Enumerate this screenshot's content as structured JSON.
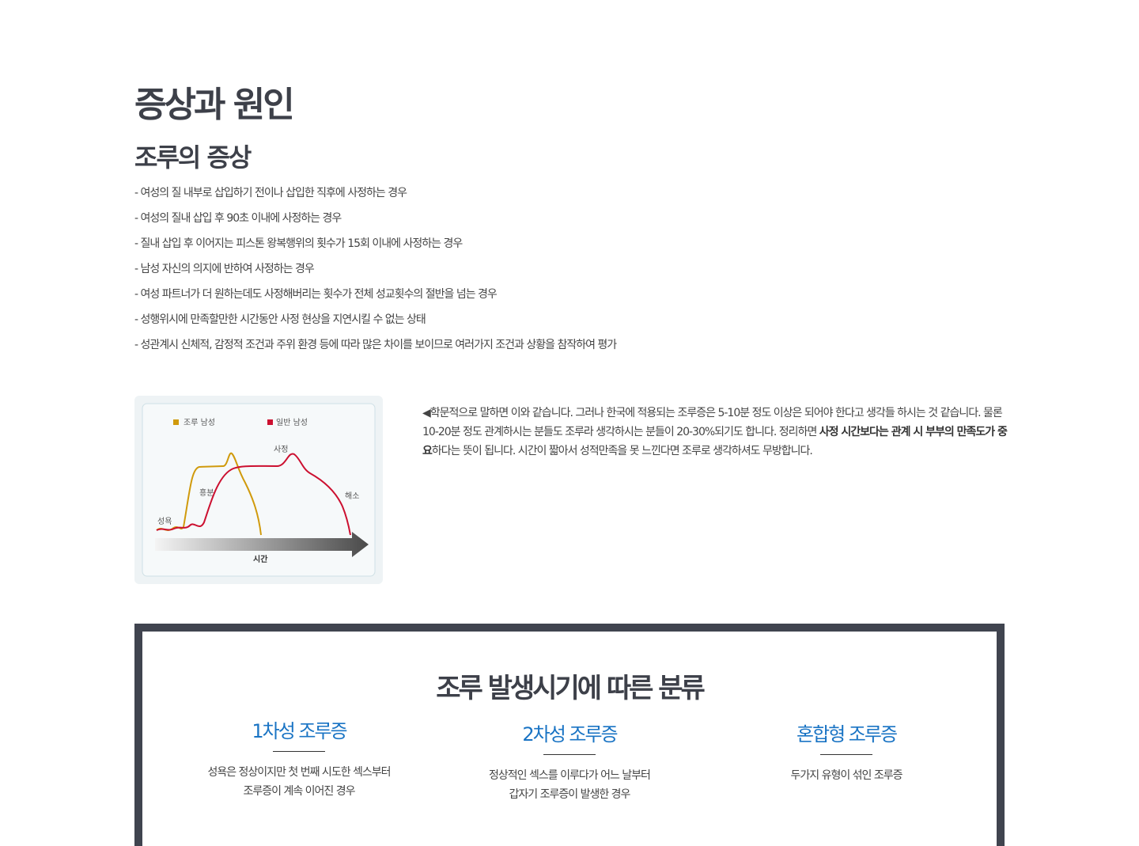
{
  "title": "증상과 원인",
  "subtitle": "조루의 증상",
  "symptoms": [
    "- 여성의 질 내부로 삽입하기 전이나 삽입한 직후에 사정하는 경우",
    "- 여성의 질내 삽입 후 90초 이내에 사정하는 경우",
    "- 질내 삽입 후 이어지는 피스톤 왕복행위의 횟수가 15회 이내에 사정하는 경우",
    "- 남성 자신의 의지에 반하여 사정하는 경우",
    "- 여성 파트너가 더 원하는데도 사정해버리는 횟수가 전체 성교횟수의 절반을 넘는 경우",
    "- 성행위시에 만족할만한 시간동안 사정 현상을 지연시킬 수 없는 상태",
    "- 성관계시 신체적, 감정적 조건과 주위 환경 등에 따라 많은 차이를 보이므로 여러가지 조건과 상황을 참작하여 평가"
  ],
  "diagram": {
    "legend": [
      {
        "label": "조루 남성",
        "color": "#d09a0c"
      },
      {
        "label": "일반 남성",
        "color": "#cc1030"
      }
    ],
    "labels": {
      "desire": "성욕",
      "arousal": "흥분",
      "ejaculation": "사정",
      "resolution": "해소",
      "time": "시간"
    }
  },
  "description": {
    "arrow": "◀",
    "text1": "학문적으로 말하면 이와 같습니다. 그러나 한국에 적용되는 조루증은 5-10분 정도 이상은 되어야 한다고 생각들 하시는 것 같습니다. 물론 10-20분 정도 관계하시는 분들도 조루라 생각하시는 분들이 20-30%되기도 합니다. 정리하면 ",
    "bold1": "사정 시간보다는 관계 시 부부의 만족도가 중요",
    "text2": "하다는 뜻이 됩니다. 시간이 짧아서 성적만족을 못 느낀다면 조루로 생각하셔도 무방합니다."
  },
  "classification": {
    "title": "조루 발생시기에 따른 분류",
    "types": [
      {
        "name": "1차성 조루증",
        "lines": [
          "성욕은 정상이지만 첫 번째 시도한 섹스부터",
          "조루증이 계속 이어진 경우"
        ]
      },
      {
        "name": "2차성 조루증",
        "lines": [
          "정상적인 섹스를 이루다가 어느 날부터",
          "갑자기 조루증이 발생한 경우"
        ]
      },
      {
        "name": "혼합형 조루증",
        "lines": [
          "두가지 유형이 섞인 조루증"
        ]
      }
    ]
  },
  "colors": {
    "accent": "#1a74c4",
    "dark": "#40444f"
  }
}
